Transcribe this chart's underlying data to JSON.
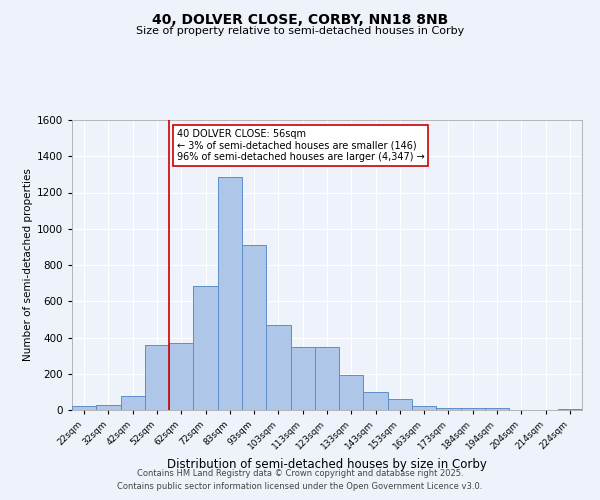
{
  "title": "40, DOLVER CLOSE, CORBY, NN18 8NB",
  "subtitle": "Size of property relative to semi-detached houses in Corby",
  "xlabel": "Distribution of semi-detached houses by size in Corby",
  "ylabel": "Number of semi-detached properties",
  "bar_labels": [
    "22sqm",
    "32sqm",
    "42sqm",
    "52sqm",
    "62sqm",
    "72sqm",
    "83sqm",
    "93sqm",
    "103sqm",
    "113sqm",
    "123sqm",
    "133sqm",
    "143sqm",
    "153sqm",
    "163sqm",
    "173sqm",
    "184sqm",
    "194sqm",
    "204sqm",
    "214sqm",
    "224sqm"
  ],
  "bar_values": [
    20,
    25,
    80,
    360,
    370,
    685,
    1285,
    910,
    470,
    350,
    350,
    195,
    100,
    60,
    20,
    10,
    10,
    12,
    0,
    0,
    5
  ],
  "bar_color": "#aec6e8",
  "bar_edge_color": "#5b8fc9",
  "vline_x_idx": 3,
  "vline_color": "#cc0000",
  "annotation_title": "40 DOLVER CLOSE: 56sqm",
  "annotation_line1": "← 3% of semi-detached houses are smaller (146)",
  "annotation_line2": "96% of semi-detached houses are larger (4,347) →",
  "annotation_box_color": "#ffffff",
  "annotation_box_edge": "#cc0000",
  "ylim": [
    0,
    1600
  ],
  "yticks": [
    0,
    200,
    400,
    600,
    800,
    1000,
    1200,
    1400,
    1600
  ],
  "bg_color": "#eef2fa",
  "grid_color": "#ffffff",
  "footer_line1": "Contains HM Land Registry data © Crown copyright and database right 2025.",
  "footer_line2": "Contains public sector information licensed under the Open Government Licence v3.0."
}
